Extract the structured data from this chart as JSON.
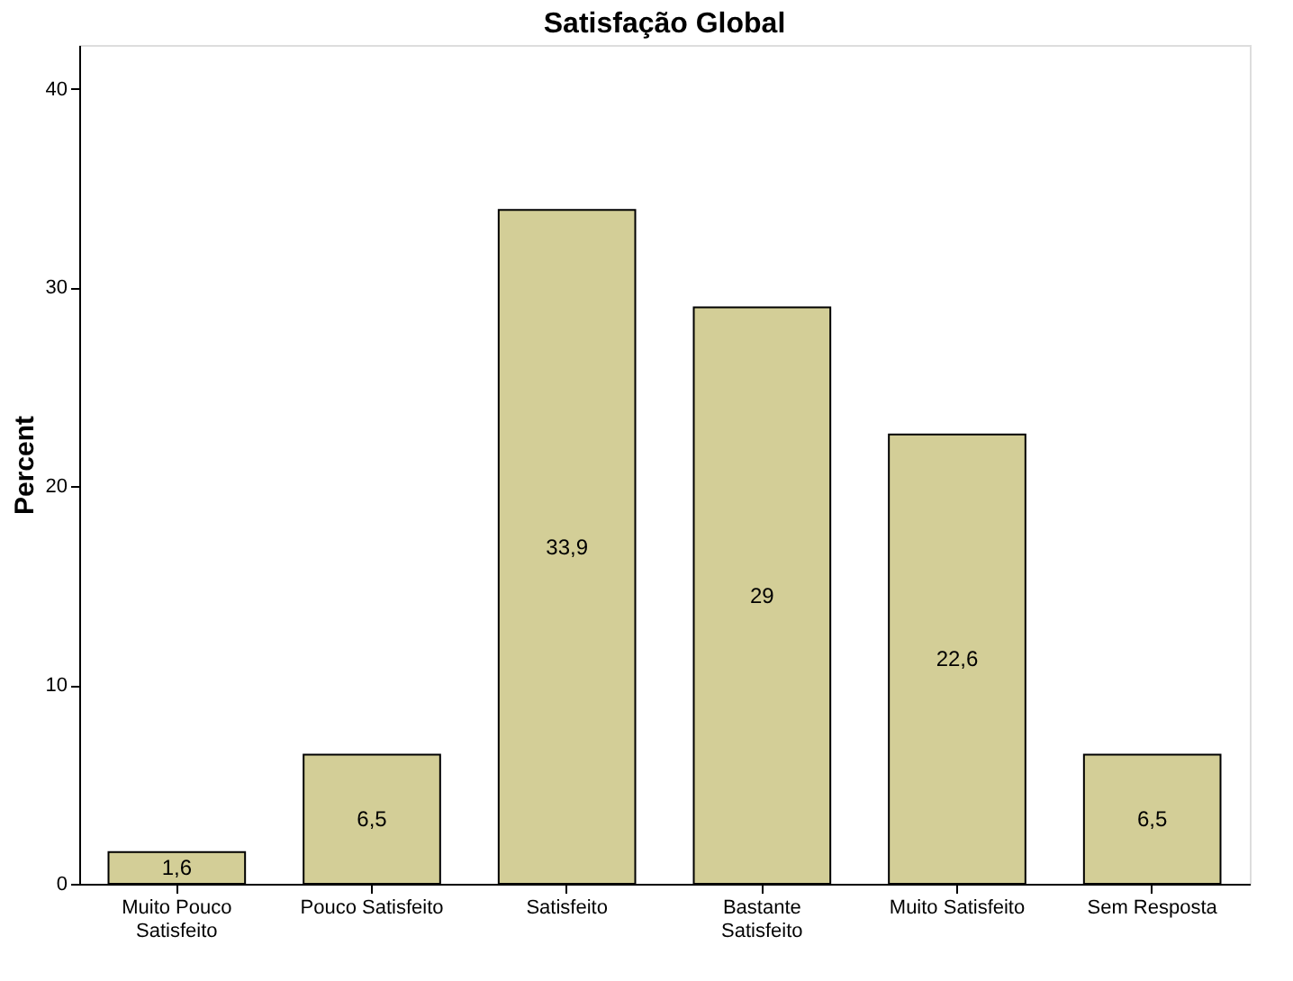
{
  "chart_data": {
    "type": "bar",
    "title": "Satisfação Global",
    "ylabel": "Percent",
    "categories": [
      "Muito Pouco Satisfeito",
      "Pouco Satisfeito",
      "Satisfeito",
      "Bastante Satisfeito",
      "Muito Satisfeito",
      "Sem Resposta"
    ],
    "values": [
      1.6,
      6.5,
      33.9,
      29,
      22.6,
      6.5
    ],
    "value_labels": [
      "1,6",
      "6,5",
      "33,9",
      "29",
      "22,6",
      "6,5"
    ],
    "color": "#d3ce97",
    "ylim": [
      0,
      42.2
    ],
    "yticks": [
      0,
      10,
      20,
      30,
      40
    ],
    "grid": false
  }
}
